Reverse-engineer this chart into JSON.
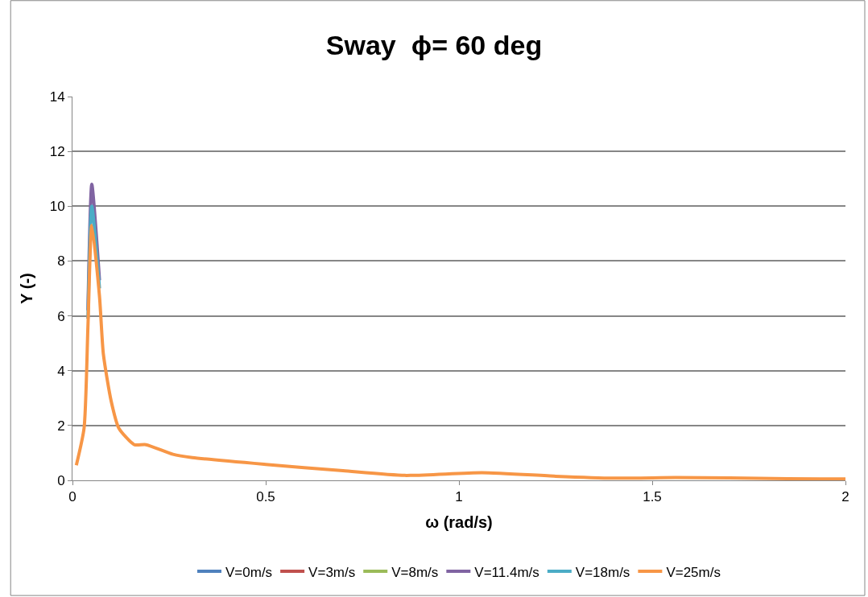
{
  "chart_data": {
    "type": "line",
    "title": "Sway  ϕ= 60 deg",
    "xlabel": "ω (rad/s)",
    "ylabel": "Y (-)",
    "x": [
      0.01,
      0.03,
      0.04,
      0.05,
      0.07,
      0.08,
      0.1,
      0.12,
      0.16,
      0.19,
      0.26,
      0.31,
      0.5,
      0.7,
      0.86,
      1.06,
      1.25,
      1.4,
      1.56,
      1.7,
      1.85,
      2.0
    ],
    "series": [
      {
        "name": "V=0m/s",
        "color": "#4f81bd",
        "values": [
          null,
          null,
          null,
          null,
          null,
          null,
          null,
          null,
          null,
          null,
          null,
          null,
          null,
          null,
          null,
          null,
          null,
          null,
          null,
          null,
          null,
          null
        ]
      },
      {
        "name": "V=3m/s",
        "color": "#c0504d",
        "values": [
          null,
          null,
          null,
          null,
          null,
          null,
          null,
          null,
          null,
          null,
          null,
          null,
          null,
          null,
          null,
          null,
          null,
          null,
          null,
          null,
          null,
          null
        ]
      },
      {
        "name": "V=8m/s",
        "color": "#9bbb59",
        "values": [
          null,
          null,
          null,
          null,
          null,
          null,
          null,
          null,
          null,
          null,
          null,
          null,
          null,
          null,
          null,
          null,
          null,
          null,
          null,
          null,
          null,
          null
        ]
      },
      {
        "name": "V=11.4m/s",
        "color": "#8064a2",
        "values": [
          null,
          null,
          6.2,
          10.8,
          7.3,
          null,
          null,
          null,
          null,
          null,
          null,
          null,
          null,
          null,
          null,
          null,
          null,
          null,
          null,
          null,
          null,
          null
        ]
      },
      {
        "name": "V=18m/s",
        "color": "#4bacc6",
        "values": [
          null,
          null,
          5.9,
          10.0,
          7.0,
          null,
          null,
          null,
          null,
          null,
          null,
          null,
          null,
          null,
          null,
          null,
          null,
          null,
          null,
          null,
          null,
          null
        ]
      },
      {
        "name": "V=25m/s",
        "color": "#f79646",
        "values": [
          0.55,
          1.9,
          5.6,
          9.3,
          6.7,
          4.6,
          2.9,
          1.9,
          1.3,
          1.3,
          0.95,
          0.83,
          0.58,
          0.35,
          0.18,
          0.28,
          0.15,
          0.08,
          0.1,
          0.09,
          0.06,
          0.05
        ]
      }
    ],
    "xlim": [
      0,
      2
    ],
    "xticks": [
      0,
      0.5,
      1,
      1.5,
      2
    ],
    "ylim": [
      0,
      14
    ],
    "yticks": [
      0,
      2,
      4,
      6,
      8,
      10,
      12,
      14
    ],
    "grid": "y",
    "legend": "bottom",
    "marker": "none",
    "line_style": "solid"
  }
}
